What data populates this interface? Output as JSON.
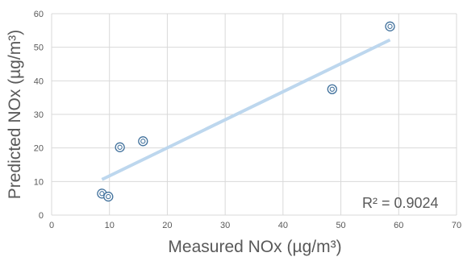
{
  "chart_data": {
    "type": "scatter",
    "title": "",
    "xlabel": "Measured NOx (µg/m³)",
    "ylabel": "Predicted NOx (µg/m³)",
    "xlim": [
      0,
      70
    ],
    "ylim": [
      0,
      60
    ],
    "xticks": [
      0,
      10,
      20,
      30,
      40,
      50,
      60,
      70
    ],
    "yticks": [
      0,
      10,
      20,
      30,
      40,
      50,
      60
    ],
    "grid": true,
    "series": [
      {
        "points": [
          {
            "x": 8.7,
            "y": 6.4
          },
          {
            "x": 9.8,
            "y": 5.5
          },
          {
            "x": 11.8,
            "y": 20.2
          },
          {
            "x": 15.8,
            "y": 22.0
          },
          {
            "x": 48.5,
            "y": 37.5
          },
          {
            "x": 58.5,
            "y": 56.2
          }
        ]
      }
    ],
    "trendline": {
      "type": "linear",
      "start": {
        "x": 8.7,
        "y": 10.6
      },
      "end": {
        "x": 58.5,
        "y": 52.2
      },
      "color": "#bdd7ee"
    },
    "annotation": "R² = 0.9024",
    "marker_color": "#41719c"
  }
}
